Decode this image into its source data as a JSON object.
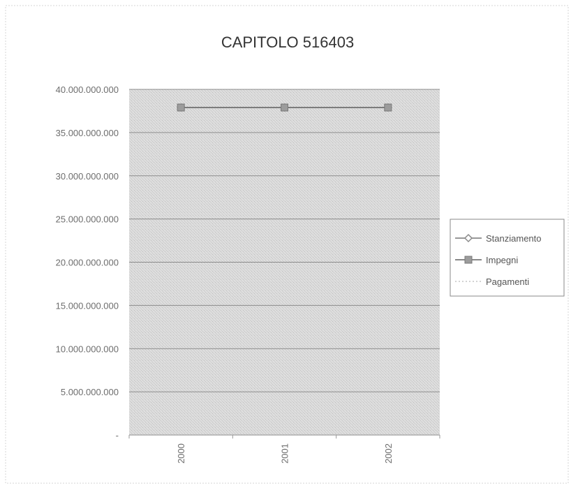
{
  "chart_data": {
    "type": "line",
    "title": "CAPITOLO 516403",
    "xlabel": "",
    "ylabel": "",
    "categories": [
      "2000",
      "2001",
      "2002"
    ],
    "ylim": [
      0,
      40000000000
    ],
    "yticks": [
      "-",
      "5.000.000.000",
      "10.000.000.000",
      "15.000.000.000",
      "20.000.000.000",
      "25.000.000.000",
      "30.000.000.000",
      "35.000.000.000",
      "40.000.000.000"
    ],
    "grid": true,
    "legend_position": "right",
    "series": [
      {
        "name": "Stanziamento",
        "values": [
          37900000000,
          37900000000,
          37900000000
        ],
        "color": "#8a8a8a",
        "marker": "diamond"
      },
      {
        "name": "Impegni",
        "values": [
          37900000000,
          37900000000,
          37900000000
        ],
        "color": "#777777",
        "marker": "square"
      },
      {
        "name": "Pagamenti",
        "values": [
          null,
          null,
          null
        ],
        "color": "#cccccc",
        "marker": "none"
      }
    ],
    "colors": {
      "plot_bg": "#d6d6d6",
      "grid": "#8f8f8f",
      "frame": "#cfcfcf"
    }
  }
}
